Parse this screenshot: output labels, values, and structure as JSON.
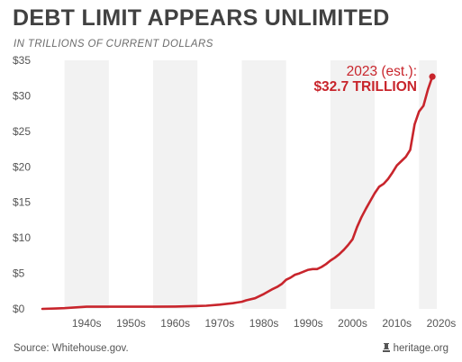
{
  "title": "DEBT LIMIT APPEARS UNLIMITED",
  "subtitle": "IN TRILLIONS OF CURRENT DOLLARS",
  "source": "Source: Whitehouse.gov.",
  "credit": "heritage.org",
  "credit_icon": "heritage-bell-icon",
  "colors": {
    "line": "#c8252c",
    "band": "#f2f2f2",
    "axis_text": "#555555",
    "title": "#414141"
  },
  "annotation": {
    "line1": "2023 (est.):",
    "line2": "$32.7 TRILLION"
  },
  "chart_data": {
    "type": "line",
    "title": "DEBT LIMIT APPEARS UNLIMITED",
    "subtitle": "IN TRILLIONS OF CURRENT DOLLARS",
    "xlabel": "",
    "ylabel": "",
    "xlim": [
      1935,
      2024
    ],
    "ylim": [
      0,
      35
    ],
    "y_ticks": [
      "$0",
      "$5",
      "$10",
      "$15",
      "$20",
      "$25",
      "$30",
      "$35"
    ],
    "x_ticks": [
      "1940s",
      "1950s",
      "1960s",
      "1970s",
      "1980s",
      "1990s",
      "2000s",
      "2010s",
      "2020s"
    ],
    "grid": "alternating vertical decade bands",
    "series": [
      {
        "x": [
          1935,
          1938,
          1940,
          1945,
          1950,
          1955,
          1960,
          1965,
          1970,
          1972,
          1975,
          1978,
          1979,
          1980,
          1981,
          1983,
          1985,
          1987,
          1988,
          1989,
          1990,
          1991,
          1992,
          1993,
          1995,
          1996,
          1997,
          1998,
          1999,
          2000,
          2001,
          2002,
          2003,
          2004,
          2005,
          2006,
          2007,
          2008,
          2009,
          2010,
          2011,
          2012,
          2013,
          2014,
          2015,
          2016,
          2017,
          2018,
          2019,
          2020,
          2021,
          2022,
          2023
        ],
        "y": [
          0.0,
          0.05,
          0.1,
          0.3,
          0.3,
          0.3,
          0.3,
          0.33,
          0.4,
          0.45,
          0.6,
          0.8,
          0.9,
          1.0,
          1.2,
          1.5,
          2.1,
          2.8,
          3.1,
          3.5,
          4.1,
          4.4,
          4.8,
          5.0,
          5.5,
          5.6,
          5.6,
          5.9,
          6.3,
          6.8,
          7.2,
          7.7,
          8.3,
          9.0,
          9.8,
          11.5,
          12.9,
          14.1,
          15.2,
          16.3,
          17.2,
          17.6,
          18.3,
          19.2,
          20.2,
          20.8,
          21.4,
          22.4,
          26.0,
          27.8,
          28.6,
          30.9,
          32.7
        ]
      }
    ]
  }
}
